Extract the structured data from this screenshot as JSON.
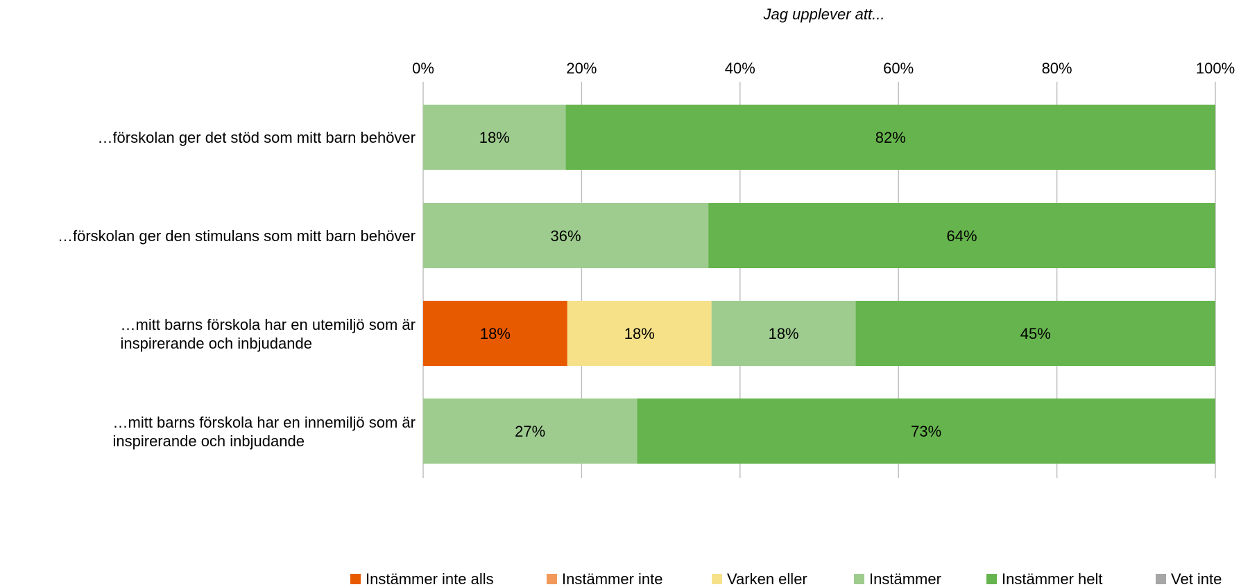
{
  "chart_data": {
    "type": "bar",
    "orientation": "horizontal",
    "stacked": true,
    "title": "Jag upplever att...",
    "xlim": [
      0,
      100
    ],
    "x_ticks": [
      "0%",
      "20%",
      "40%",
      "60%",
      "80%",
      "100%"
    ],
    "x_tick_values": [
      0,
      20,
      40,
      60,
      80,
      100
    ],
    "grid": true,
    "legend_position": "bottom",
    "categories": [
      [
        "…förskolan ger det stöd som mitt barn behöver"
      ],
      [
        "…förskolan ger den stimulans som mitt barn behöver"
      ],
      [
        "…mitt barns förskola har en utemiljö som är",
        "inspirerande och inbjudande"
      ],
      [
        "…mitt barns förskola har en innemiljö som är",
        "inspirerande och inbjudande"
      ]
    ],
    "series": [
      {
        "name": "Instämmer inte alls",
        "color": "#E85A00",
        "values": [
          0,
          0,
          18.2,
          0
        ],
        "labels": [
          "",
          "",
          "18%",
          ""
        ]
      },
      {
        "name": "Instämmer inte",
        "color": "#F2995A",
        "values": [
          0,
          0,
          0,
          0
        ],
        "labels": [
          "",
          "",
          "",
          ""
        ]
      },
      {
        "name": "Varken eller",
        "color": "#F6E189",
        "values": [
          0,
          0,
          18.2,
          0
        ],
        "labels": [
          "",
          "",
          "18%",
          ""
        ]
      },
      {
        "name": "Instämmer",
        "color": "#9ECC8F",
        "values": [
          18,
          36,
          18.2,
          27
        ],
        "labels": [
          "18%",
          "36%",
          "18%",
          "27%"
        ]
      },
      {
        "name": "Instämmer helt",
        "color": "#66B44D",
        "values": [
          82,
          64,
          45.4,
          73
        ],
        "labels": [
          "82%",
          "64%",
          "45%",
          "73%"
        ]
      },
      {
        "name": "Vet inte",
        "color": "#A6A6A6",
        "values": [
          0,
          0,
          0,
          0
        ],
        "labels": [
          "",
          "",
          "",
          ""
        ]
      }
    ]
  }
}
